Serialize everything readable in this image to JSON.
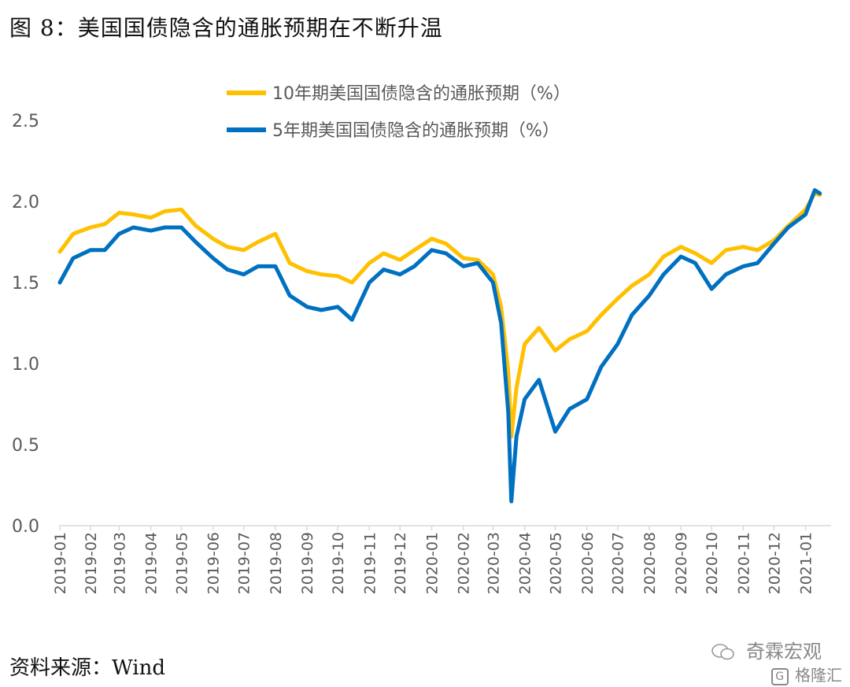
{
  "figure": {
    "title": "图 8：美国国债隐含的通胀预期在不断升温",
    "source": "资料来源：Wind",
    "watermark_main": "奇霖宏观",
    "watermark_sub": "格隆汇"
  },
  "colors": {
    "series10": "#FFC000",
    "series5": "#0070C0",
    "axis": "#D9D9D9",
    "text": "#595959"
  },
  "chart_data": {
    "type": "line",
    "title": "",
    "xlabel": "",
    "ylabel": "",
    "ylim": [
      0,
      2.5
    ],
    "yticks": [
      "0.0",
      "0.5",
      "1.0",
      "1.5",
      "2.0",
      "2.5"
    ],
    "xticks": [
      "2019-01",
      "2019-02",
      "2019-03",
      "2019-04",
      "2019-05",
      "2019-06",
      "2019-07",
      "2019-08",
      "2019-09",
      "2019-10",
      "2019-11",
      "2019-12",
      "2020-01",
      "2020-02",
      "2020-03",
      "2020-04",
      "2020-05",
      "2020-06",
      "2020-07",
      "2020-08",
      "2020-09",
      "2020-10",
      "2020-11",
      "2020-12",
      "2021-01"
    ],
    "grid": false,
    "legend": "top",
    "x": [
      "2019-01-02",
      "2019-01-15",
      "2019-02-01",
      "2019-02-15",
      "2019-03-01",
      "2019-03-15",
      "2019-04-01",
      "2019-04-15",
      "2019-05-01",
      "2019-05-15",
      "2019-06-01",
      "2019-06-15",
      "2019-07-01",
      "2019-07-15",
      "2019-08-01",
      "2019-08-15",
      "2019-09-01",
      "2019-09-15",
      "2019-10-01",
      "2019-10-15",
      "2019-11-01",
      "2019-11-15",
      "2019-12-01",
      "2019-12-15",
      "2020-01-01",
      "2020-01-15",
      "2020-02-01",
      "2020-02-15",
      "2020-03-01",
      "2020-03-09",
      "2020-03-16",
      "2020-03-19",
      "2020-03-24",
      "2020-04-01",
      "2020-04-15",
      "2020-05-01",
      "2020-05-15",
      "2020-06-01",
      "2020-06-15",
      "2020-07-01",
      "2020-07-15",
      "2020-08-01",
      "2020-08-15",
      "2020-09-01",
      "2020-09-15",
      "2020-10-01",
      "2020-10-15",
      "2020-11-01",
      "2020-11-15",
      "2020-12-01",
      "2020-12-15",
      "2021-01-01",
      "2021-01-10",
      "2021-01-15"
    ],
    "series": [
      {
        "name": "10年期美国国债隐含的通胀预期（%）",
        "color": "#FFC000",
        "values": [
          1.69,
          1.8,
          1.84,
          1.86,
          1.93,
          1.92,
          1.9,
          1.94,
          1.95,
          1.85,
          1.77,
          1.72,
          1.7,
          1.75,
          1.8,
          1.62,
          1.57,
          1.55,
          1.54,
          1.5,
          1.62,
          1.68,
          1.64,
          1.7,
          1.77,
          1.74,
          1.65,
          1.64,
          1.55,
          1.35,
          0.95,
          0.55,
          0.85,
          1.12,
          1.22,
          1.08,
          1.15,
          1.2,
          1.3,
          1.4,
          1.48,
          1.55,
          1.66,
          1.72,
          1.68,
          1.62,
          1.7,
          1.72,
          1.7,
          1.76,
          1.85,
          1.95,
          2.05,
          2.04
        ]
      },
      {
        "name": "5年期美国国债隐含的通胀预期（%）",
        "color": "#0070C0",
        "values": [
          1.5,
          1.65,
          1.7,
          1.7,
          1.8,
          1.84,
          1.82,
          1.84,
          1.84,
          1.75,
          1.65,
          1.58,
          1.55,
          1.6,
          1.6,
          1.42,
          1.35,
          1.33,
          1.35,
          1.27,
          1.5,
          1.58,
          1.55,
          1.6,
          1.7,
          1.68,
          1.6,
          1.62,
          1.5,
          1.25,
          0.7,
          0.15,
          0.55,
          0.78,
          0.9,
          0.58,
          0.72,
          0.78,
          0.98,
          1.12,
          1.3,
          1.42,
          1.55,
          1.66,
          1.62,
          1.46,
          1.55,
          1.6,
          1.62,
          1.74,
          1.84,
          1.92,
          2.07,
          2.05
        ]
      }
    ]
  }
}
